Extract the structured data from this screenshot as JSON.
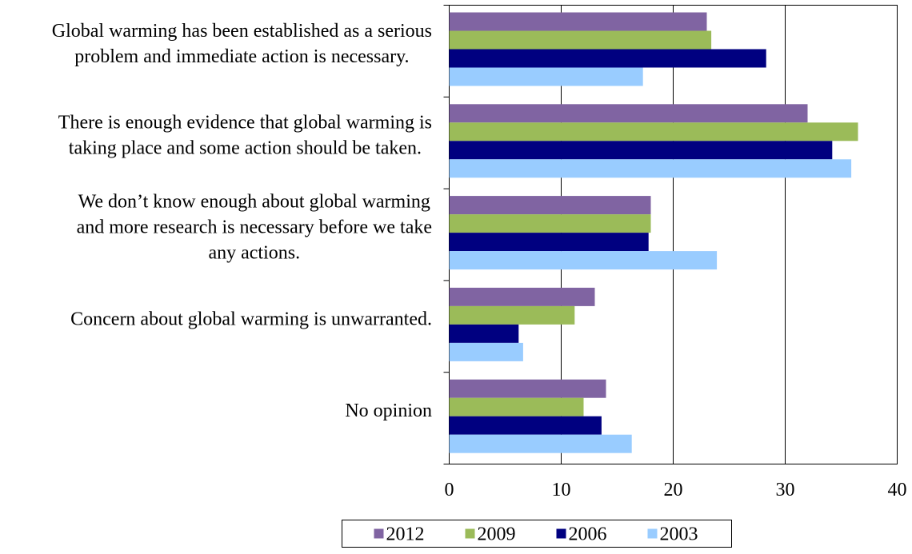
{
  "chart_data": {
    "type": "bar",
    "orientation": "horizontal",
    "title": "",
    "xlabel": "",
    "ylabel": "",
    "categories": [
      [
        "Global warming has been established as a serious",
        "problem and immediate action is necessary."
      ],
      [
        "There is enough evidence that global warming is",
        "taking place and some action should be taken."
      ],
      [
        "We don’t know enough about global warming",
        "and more research is necessary before we take",
        "any actions."
      ],
      [
        "Concern about global warming is unwarranted."
      ],
      [
        "No opinion"
      ]
    ],
    "series": [
      {
        "name": "2012",
        "color": "#8064a2",
        "values": [
          23,
          32,
          18,
          13,
          14
        ]
      },
      {
        "name": "2009",
        "color": "#9bbb59",
        "values": [
          23.4,
          36.5,
          18,
          11.2,
          12
        ]
      },
      {
        "name": "2006",
        "color": "#000080",
        "values": [
          28.3,
          34.2,
          17.8,
          6.2,
          13.6
        ]
      },
      {
        "name": "2003",
        "color": "#99ccff",
        "values": [
          17.3,
          35.9,
          23.9,
          6.6,
          16.3
        ]
      }
    ],
    "xlim": [
      0,
      40
    ],
    "xticks": [
      "0",
      "10",
      "20",
      "30",
      "40"
    ],
    "grid": "vertical",
    "legend_position": "bottom"
  }
}
